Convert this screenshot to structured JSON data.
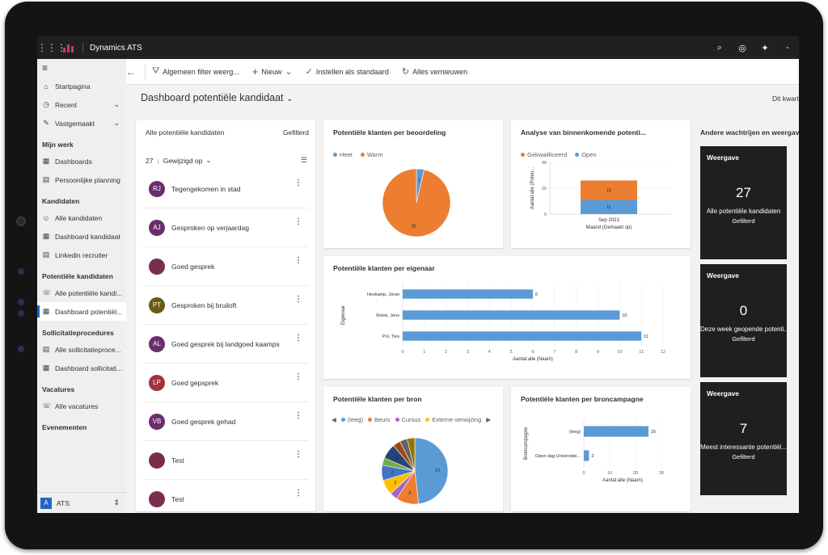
{
  "topbar": {
    "app_name": "Dynamics ATS"
  },
  "commands": {
    "filter": "Algemeen filter weerg...",
    "new": "Nieuw",
    "set_default": "Instellen als standaard",
    "refresh": "Alles vernieuwen"
  },
  "sidebar": {
    "top": [
      {
        "label": "Startpagina"
      },
      {
        "label": "Recent"
      },
      {
        "label": "Vastgemaakt"
      }
    ],
    "groups": [
      {
        "title": "Mijn werk",
        "items": [
          "Dashboards",
          "Persoonlijke planning"
        ]
      },
      {
        "title": "Kandidaten",
        "items": [
          "Alle kandidaten",
          "Dashboard kandidaat",
          "Linkedin recruiter"
        ]
      },
      {
        "title": "Potentiële kandidaten",
        "items": [
          "Alle potentiële kandi...",
          "Dashboard potentiël..."
        ]
      },
      {
        "title": "Sollicitatieprocedures",
        "items": [
          "Alle sollicitatieproce...",
          "Dashboard sollicitati..."
        ]
      },
      {
        "title": "Vacatures",
        "items": [
          "Alle vacatures"
        ]
      },
      {
        "title": "Evenementen",
        "items": []
      }
    ],
    "area": {
      "badge": "A",
      "label": "ATS"
    }
  },
  "page": {
    "title": "Dashboard potentiële kandidaat",
    "period": "Dit kwart"
  },
  "list": {
    "title": "Alle potentiële kandidaten",
    "status": "Gefilterd",
    "count": "27",
    "sort": "Gewijzigd op",
    "items": [
      {
        "initials": "RJ",
        "name": "Tegengekomen in stad",
        "color": "#6b2d6b"
      },
      {
        "initials": "AJ",
        "name": "Gesproken op verjaardag",
        "color": "#6b2d6b"
      },
      {
        "initials": "",
        "name": "Goed gesprek",
        "color": "#7a2e4e"
      },
      {
        "initials": "PT",
        "name": "Gesproken bij bruiloft",
        "color": "#6b5a14"
      },
      {
        "initials": "AL",
        "name": "Goed gesprek bij landgoed kaamps",
        "color": "#6b2d6b"
      },
      {
        "initials": "LP",
        "name": "Goed gepsprek",
        "color": "#a3313c"
      },
      {
        "initials": "VB",
        "name": "Goed gesprek gehad",
        "color": "#6b2d6b"
      },
      {
        "initials": "",
        "name": "Test",
        "color": "#7a2e4e"
      },
      {
        "initials": "",
        "name": "Test",
        "color": "#7a2e4e"
      }
    ]
  },
  "colors": {
    "blue": "#5b9bd5",
    "orange": "#ed7d31"
  },
  "chart_data": [
    {
      "type": "pie",
      "title": "Potentiële klanten per beoordeling",
      "legend": [
        "Heet",
        "Warm"
      ],
      "values": [
        1,
        26
      ],
      "colors": [
        "#5b9bd5",
        "#ed7d31"
      ]
    },
    {
      "type": "bar",
      "title": "Analyse van binnenkomende potenti...",
      "legend": [
        "Gekwalificeerd",
        "Open"
      ],
      "categories": [
        "Sep 2021"
      ],
      "series": [
        {
          "name": "Open",
          "values": [
            11
          ],
          "color": "#5b9bd5"
        },
        {
          "name": "Gekwalificeerd",
          "values": [
            15
          ],
          "color": "#ed7d31"
        }
      ],
      "ylabel": "Aantal:alle (Poten...",
      "xlabel": "Maand (Gemaakt op)",
      "ylim": [
        0,
        40
      ],
      "yticks": [
        "0",
        "20",
        "40"
      ]
    },
    {
      "type": "bar",
      "title": "Potentiële klanten per eigenaar",
      "categories": [
        "Heskamp, Joran",
        "Roink, Jens",
        "Pol, Ties"
      ],
      "values": [
        6,
        10,
        11
      ],
      "xlabel": "Aantal:alle (Naam)",
      "ylabel": "Eigenaar",
      "xlim": [
        0,
        12
      ],
      "xticks": [
        "0",
        "1",
        "2",
        "3",
        "4",
        "5",
        "6",
        "7",
        "8",
        "9",
        "10",
        "11",
        "12"
      ]
    },
    {
      "type": "pie",
      "title": "Potentiële klanten per bron",
      "legend": [
        "(leeg)",
        "Beurs",
        "Cursus",
        "Externe verwijzing"
      ],
      "values": [
        13,
        3,
        1,
        2,
        2,
        1,
        2,
        1,
        1,
        1
      ],
      "labels": [
        "13",
        "3",
        "",
        "2",
        "2",
        "",
        "2",
        "",
        "",
        ""
      ],
      "colors": [
        "#5b9bd5",
        "#ed7d31",
        "#a563c5",
        "#ffc000",
        "#4472c4",
        "#70ad47",
        "#264478",
        "#9e480e",
        "#636363",
        "#997300"
      ]
    },
    {
      "type": "bar",
      "title": "Potentiële klanten per broncampagne",
      "categories": [
        "(leeg)",
        "Open dag Universitei..."
      ],
      "values": [
        25,
        2
      ],
      "xlabel": "Aantal:alle (Naam)",
      "ylabel": "Broncampagne",
      "xlim": [
        0,
        30
      ],
      "xticks": [
        "0",
        "10",
        "20",
        "30"
      ]
    }
  ],
  "streams": {
    "title": "Andere wachtrijen en weergaven",
    "tiles": [
      {
        "label": "Weergave",
        "count": "27",
        "name": "Alle potentiële kandidaten",
        "status": "Gefilterd"
      },
      {
        "label": "Weergave",
        "count": "0",
        "name": "Deze week geopende potenti...",
        "status": "Gefilterd"
      },
      {
        "label": "Weergave",
        "count": "7",
        "name": "Meest interessante potentiël...",
        "status": "Gefilterd"
      }
    ]
  }
}
